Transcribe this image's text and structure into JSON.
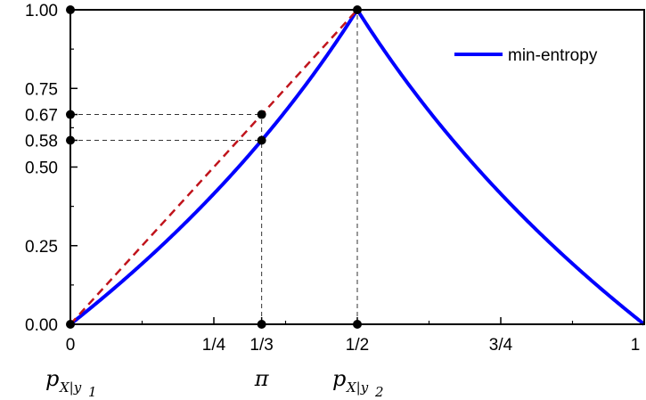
{
  "chart_data": {
    "type": "line",
    "xlim": [
      0,
      1
    ],
    "ylim": [
      0,
      1
    ],
    "x_ticks": [
      {
        "value": 0,
        "label": "0"
      },
      {
        "value": 0.25,
        "label": "1/4"
      },
      {
        "value": 0.3333,
        "label": "1/3"
      },
      {
        "value": 0.5,
        "label": "1/2"
      },
      {
        "value": 0.75,
        "label": "3/4"
      },
      {
        "value": 1,
        "label": "1"
      }
    ],
    "x_minor_ticks": [
      0.125,
      0.375,
      0.625,
      0.875
    ],
    "y_ticks": [
      {
        "value": 0,
        "label": "0.00"
      },
      {
        "value": 0.25,
        "label": "0.25"
      },
      {
        "value": 0.5,
        "label": "0.50"
      },
      {
        "value": 0.585,
        "label": "0.58"
      },
      {
        "value": 0.667,
        "label": "0.67"
      },
      {
        "value": 0.75,
        "label": "0.75"
      },
      {
        "value": 1,
        "label": "1.00"
      }
    ],
    "y_minor_ticks": [
      0.125,
      0.375,
      0.625,
      0.875
    ],
    "series": [
      {
        "name": "min-entropy",
        "color": "#0000ff",
        "style": "solid",
        "formula": "-log2(max(p, 1-p))",
        "x": [
          0,
          0.05,
          0.1,
          0.15,
          0.2,
          0.25,
          0.3,
          0.3333,
          0.35,
          0.4,
          0.45,
          0.5,
          0.55,
          0.6,
          0.65,
          0.7,
          0.75,
          0.8,
          0.85,
          0.9,
          0.95,
          1
        ],
        "y": [
          0,
          0.074,
          0.152,
          0.234,
          0.322,
          0.415,
          0.515,
          0.585,
          0.621,
          0.737,
          0.862,
          1,
          0.862,
          0.737,
          0.621,
          0.515,
          0.415,
          0.322,
          0.234,
          0.152,
          0.074,
          0
        ]
      },
      {
        "color": "#c0141c",
        "style": "dashed",
        "x": [
          0,
          0.5
        ],
        "y": [
          0,
          1
        ]
      }
    ],
    "points": [
      {
        "x": 0,
        "y": 0
      },
      {
        "x": 0,
        "y": 0.585
      },
      {
        "x": 0,
        "y": 0.667
      },
      {
        "x": 0,
        "y": 1
      },
      {
        "x": 0.3333,
        "y": 0
      },
      {
        "x": 0.3333,
        "y": 0.585
      },
      {
        "x": 0.3333,
        "y": 0.667
      },
      {
        "x": 0.5,
        "y": 0
      },
      {
        "x": 0.5,
        "y": 1
      }
    ],
    "guides": [
      {
        "from": [
          0,
          0.667
        ],
        "to": [
          0.3333,
          0.667
        ]
      },
      {
        "from": [
          0,
          0.585
        ],
        "to": [
          0.3333,
          0.585
        ]
      },
      {
        "from": [
          0.3333,
          0
        ],
        "to": [
          0.3333,
          0.667
        ]
      },
      {
        "from": [
          0.5,
          0
        ],
        "to": [
          0.5,
          1
        ]
      }
    ],
    "legend": {
      "label": "min-entropy",
      "placement": "top-right"
    },
    "annotations": [
      {
        "x": 0,
        "base": "p",
        "sub": "X|y",
        "subsub": "1"
      },
      {
        "x": 0.3333,
        "base": "π"
      },
      {
        "x": 0.5,
        "base": "p",
        "sub": "X|y",
        "subsub": "2"
      }
    ],
    "grid": false
  }
}
